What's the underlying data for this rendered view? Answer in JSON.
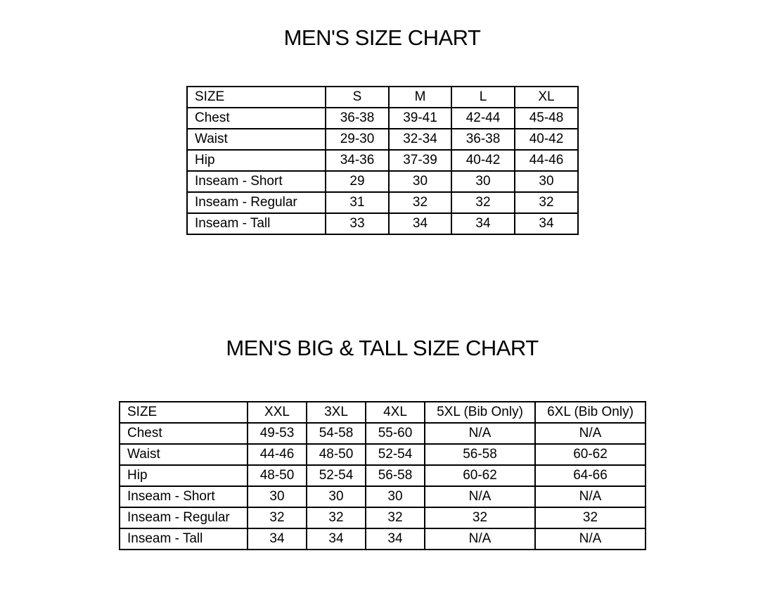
{
  "mens": {
    "title": "MEN'S SIZE CHART",
    "header": [
      "SIZE",
      "S",
      "M",
      "L",
      "XL"
    ],
    "rows": [
      [
        "Chest",
        "36-38",
        "39-41",
        "42-44",
        "45-48"
      ],
      [
        "Waist",
        "29-30",
        "32-34",
        "36-38",
        "40-42"
      ],
      [
        "Hip",
        "34-36",
        "37-39",
        "40-42",
        "44-46"
      ],
      [
        "Inseam - Short",
        "29",
        "30",
        "30",
        "30"
      ],
      [
        "Inseam - Regular",
        "31",
        "32",
        "32",
        "32"
      ],
      [
        "Inseam - Tall",
        "33",
        "34",
        "34",
        "34"
      ]
    ]
  },
  "big_tall": {
    "title": "MEN'S BIG & TALL SIZE CHART",
    "header": [
      "SIZE",
      "XXL",
      "3XL",
      "4XL",
      "5XL (Bib Only)",
      "6XL (Bib Only)"
    ],
    "rows": [
      [
        "Chest",
        "49-53",
        "54-58",
        "55-60",
        "N/A",
        "N/A"
      ],
      [
        "Waist",
        "44-46",
        "48-50",
        "52-54",
        "56-58",
        "60-62"
      ],
      [
        "Hip",
        "48-50",
        "52-54",
        "56-58",
        "60-62",
        "64-66"
      ],
      [
        "Inseam - Short",
        "30",
        "30",
        "30",
        "N/A",
        "N/A"
      ],
      [
        "Inseam - Regular",
        "32",
        "32",
        "32",
        "32",
        "32"
      ],
      [
        "Inseam - Tall",
        "34",
        "34",
        "34",
        "N/A",
        "N/A"
      ]
    ]
  }
}
